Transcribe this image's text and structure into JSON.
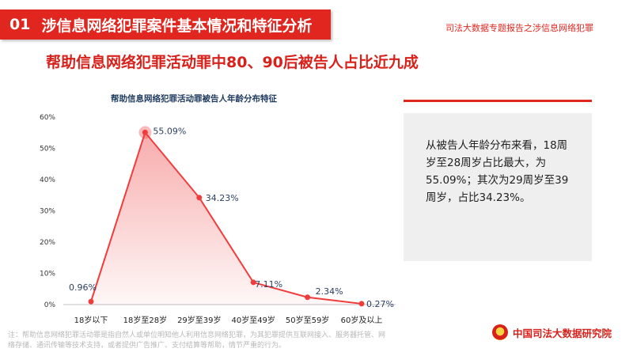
{
  "header": {
    "number": "01",
    "title": "涉信息网络犯罪案件基本情况和特征分析",
    "report_tag": "司法大数据专题报告之涉信息网络犯罪"
  },
  "subtitle": "帮助信息网络犯罪活动罪中80、90后被告人占比近九成",
  "chart_data": {
    "type": "line",
    "title": "帮助信息网络犯罪活动罪被告人年龄分布特征",
    "categories": [
      "18岁以下",
      "18岁至28岁",
      "29岁至39岁",
      "40岁至49岁",
      "50岁至59岁",
      "60岁及以上"
    ],
    "values": [
      0.96,
      55.09,
      34.23,
      7.11,
      2.34,
      0.27
    ],
    "value_labels": [
      "0.96%",
      "55.09%",
      "34.23%",
      "7.11%",
      "2.34%",
      "0.27%"
    ],
    "y_ticks": [
      "0%",
      "10%",
      "20%",
      "30%",
      "40%",
      "50%",
      "60%"
    ],
    "ylim": [
      0,
      60
    ],
    "xlabel": "",
    "ylabel": "",
    "grid": false,
    "area_fill": true,
    "line_color": "#f03c3c",
    "highlight_index": 1
  },
  "side": {
    "text": "从被告人年龄分布来看，18周岁至28周岁占比最大，为55.09%；其次为29周岁至39周岁，占比34.23%。"
  },
  "footnote": "注：帮助信息网络犯罪活动罪是指自然人或单位明知他人利用信息网络犯罪，为其犯罪提供互联网接入、服务器托管、网络存储、通讯传输等技术支持，或者提供广告推广、支付结算等帮助，情节严重的行为。",
  "org": {
    "name": "中国司法大数据研究院",
    "emblem_icon": "court-emblem-icon"
  },
  "colors": {
    "accent": "#e0261f",
    "panel_bg": "#efefef",
    "chart_title": "#1e3a5f"
  }
}
